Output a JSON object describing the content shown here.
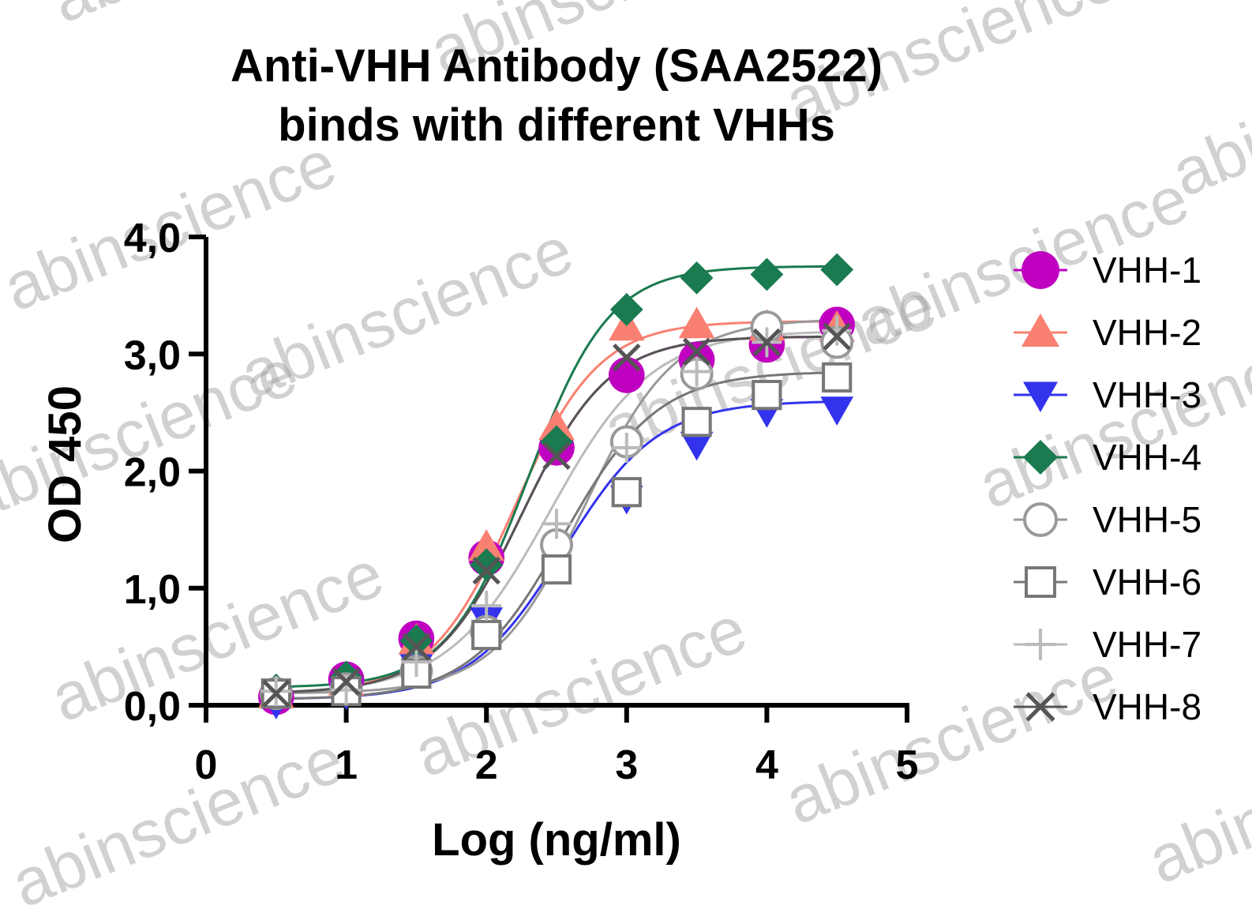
{
  "chart_data": {
    "type": "scatter",
    "title_line1": "Anti-VHH Antibody (SAA2522)",
    "title_line2": "binds with different VHHs",
    "xlabel": "Log (ng/ml)",
    "ylabel": "OD 450",
    "xlim": [
      0,
      5
    ],
    "ylim": [
      0,
      4
    ],
    "x_ticks": [
      "0",
      "1",
      "2",
      "3",
      "4",
      "5"
    ],
    "y_ticks": [
      "0,0",
      "1,0",
      "2,0",
      "3,0",
      "4,0"
    ],
    "grid": false,
    "legend_position": "right",
    "x": [
      0.5,
      1.0,
      1.5,
      2.0,
      2.5,
      3.0,
      3.5,
      4.0,
      4.5
    ],
    "series": [
      {
        "name": "VHH-1",
        "color": "#c000c0",
        "marker": "circle-filled",
        "curve": [
          0.1,
          3.15,
          2.25,
          1.4
        ],
        "values": [
          0.07,
          0.22,
          0.57,
          1.26,
          2.2,
          2.82,
          2.95,
          3.08,
          3.25
        ]
      },
      {
        "name": "VHH-2",
        "color": "#fa8072",
        "marker": "triangle-up-filled",
        "curve": [
          0.1,
          3.28,
          2.2,
          1.45
        ],
        "values": [
          0.09,
          0.2,
          0.55,
          1.35,
          2.38,
          3.23,
          3.25,
          3.23,
          3.22
        ]
      },
      {
        "name": "VHH-3",
        "color": "#3333ee",
        "marker": "triangle-down-filled",
        "curve": [
          0.05,
          2.6,
          2.55,
          1.3
        ],
        "values": [
          0.02,
          0.1,
          0.33,
          0.73,
          1.25,
          1.77,
          2.23,
          2.51,
          2.53
        ]
      },
      {
        "name": "VHH-4",
        "color": "#1a7a50",
        "marker": "diamond-filled",
        "curve": [
          0.15,
          3.75,
          2.3,
          1.5
        ],
        "values": [
          0.13,
          0.24,
          0.55,
          1.2,
          2.25,
          3.38,
          3.65,
          3.68,
          3.72
        ]
      },
      {
        "name": "VHH-5",
        "color": "#999999",
        "marker": "circle-open",
        "curve": [
          0.1,
          3.3,
          2.7,
          1.35
        ],
        "values": [
          0.1,
          0.14,
          0.29,
          0.63,
          1.37,
          2.25,
          2.83,
          3.23,
          3.1
        ]
      },
      {
        "name": "VHH-6",
        "color": "#777777",
        "marker": "square-open",
        "curve": [
          0.05,
          2.85,
          2.55,
          1.3
        ],
        "values": [
          0.1,
          0.12,
          0.27,
          0.6,
          1.16,
          1.82,
          2.42,
          2.65,
          2.8
        ]
      },
      {
        "name": "VHH-7",
        "color": "#bbbbbb",
        "marker": "plus",
        "curve": [
          0.1,
          3.2,
          2.45,
          1.2
        ],
        "values": [
          0.12,
          0.13,
          0.37,
          0.85,
          1.55,
          2.2,
          2.85,
          3.1,
          3.2
        ]
      },
      {
        "name": "VHH-8",
        "color": "#555555",
        "marker": "cross",
        "curve": [
          0.1,
          3.15,
          2.25,
          1.4
        ],
        "values": [
          0.1,
          0.2,
          0.5,
          1.15,
          2.13,
          2.97,
          3.02,
          3.1,
          3.15
        ]
      }
    ]
  },
  "watermark": "abinscience"
}
